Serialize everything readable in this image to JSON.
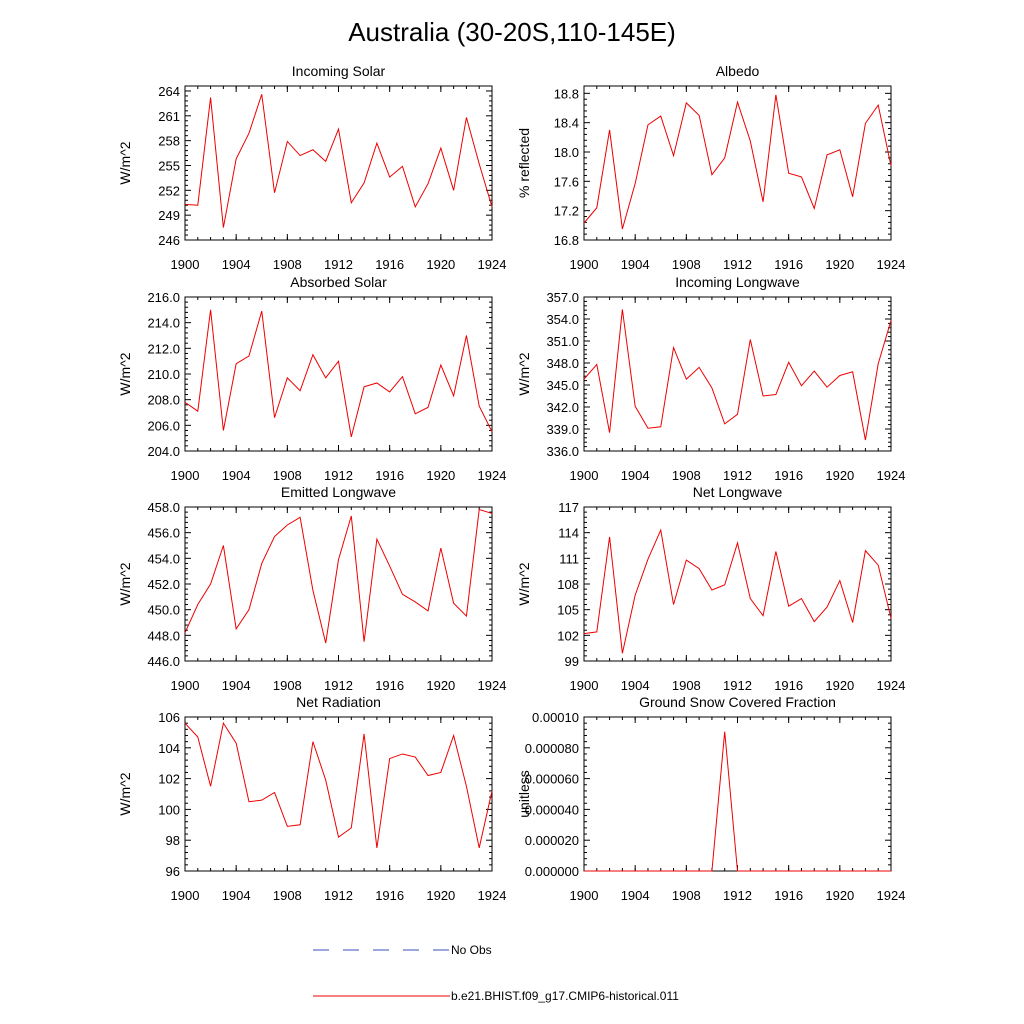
{
  "figure_title": "Australia (30-20S,110-145E)",
  "legend": [
    {
      "label": "No Obs",
      "color": "#3a4fb8",
      "dash": true
    },
    {
      "label": "b.e21.BHIST.f09_g17.CMIP6-historical.011",
      "color": "#ee0000",
      "dash": false
    }
  ],
  "chart_data": [
    {
      "type": "line",
      "title": "Incoming Solar",
      "ylabel": "W/m^2",
      "x": [
        1900,
        1901,
        1902,
        1903,
        1904,
        1905,
        1906,
        1907,
        1908,
        1909,
        1910,
        1911,
        1912,
        1913,
        1914,
        1915,
        1916,
        1917,
        1918,
        1919,
        1920,
        1921,
        1922,
        1923,
        1924
      ],
      "xlim": [
        1900,
        1924
      ],
      "xticks": [
        1900,
        1904,
        1908,
        1912,
        1916,
        1920,
        1924
      ],
      "xtick_labels": [
        "1900",
        "1904",
        "1908",
        "1912",
        "1916",
        "1920",
        "1924"
      ],
      "ylim": [
        246,
        264.6
      ],
      "yticks": [
        246,
        249,
        252,
        255,
        258,
        261,
        264
      ],
      "ytick_labels": [
        "246",
        "249",
        "252",
        "255",
        "258",
        "261",
        "264"
      ],
      "series": [
        {
          "values": [
            250.3,
            250.2,
            263.2,
            247.5,
            255.8,
            258.9,
            263.6,
            251.7,
            257.9,
            256.2,
            256.9,
            255.5,
            259.4,
            250.5,
            252.9,
            257.7,
            253.6,
            254.9,
            250.0,
            252.8,
            257.1,
            252.0,
            260.8,
            255.2,
            250.0
          ],
          "color": "#ee0000"
        }
      ]
    },
    {
      "type": "line",
      "title": "Albedo",
      "ylabel": "% reflected",
      "x": [
        1900,
        1901,
        1902,
        1903,
        1904,
        1905,
        1906,
        1907,
        1908,
        1909,
        1910,
        1911,
        1912,
        1913,
        1914,
        1915,
        1916,
        1917,
        1918,
        1919,
        1920,
        1921,
        1922,
        1923,
        1924
      ],
      "xlim": [
        1900,
        1924
      ],
      "xticks": [
        1900,
        1904,
        1908,
        1912,
        1916,
        1920,
        1924
      ],
      "xtick_labels": [
        "1900",
        "1904",
        "1908",
        "1912",
        "1916",
        "1920",
        "1924"
      ],
      "ylim": [
        16.8,
        18.9
      ],
      "yticks": [
        16.8,
        17.2,
        17.6,
        18.0,
        18.4,
        18.8
      ],
      "ytick_labels": [
        "16.8",
        "17.2",
        "17.6",
        "18.0",
        "18.4",
        "18.8"
      ],
      "series": [
        {
          "values": [
            17.03,
            17.24,
            18.3,
            16.95,
            17.57,
            18.37,
            18.49,
            17.95,
            18.67,
            18.5,
            17.69,
            17.92,
            18.68,
            18.15,
            17.32,
            18.78,
            17.71,
            17.66,
            17.23,
            17.96,
            18.03,
            17.39,
            18.39,
            18.64,
            17.81
          ],
          "color": "#ee0000"
        }
      ]
    },
    {
      "type": "line",
      "title": "Absorbed Solar",
      "ylabel": "W/m^2",
      "x": [
        1900,
        1901,
        1902,
        1903,
        1904,
        1905,
        1906,
        1907,
        1908,
        1909,
        1910,
        1911,
        1912,
        1913,
        1914,
        1915,
        1916,
        1917,
        1918,
        1919,
        1920,
        1921,
        1922,
        1923,
        1924
      ],
      "xlim": [
        1900,
        1924
      ],
      "xticks": [
        1900,
        1904,
        1908,
        1912,
        1916,
        1920,
        1924
      ],
      "xtick_labels": [
        "1900",
        "1904",
        "1908",
        "1912",
        "1916",
        "1920",
        "1924"
      ],
      "ylim": [
        204.0,
        216.0
      ],
      "yticks": [
        204,
        206,
        208,
        210,
        212,
        214,
        216
      ],
      "ytick_labels": [
        "204.0",
        "206.0",
        "208.0",
        "210.0",
        "212.0",
        "214.0",
        "216.0"
      ],
      "series": [
        {
          "values": [
            207.8,
            207.1,
            215.0,
            205.6,
            210.8,
            211.4,
            214.9,
            206.6,
            209.7,
            208.7,
            211.5,
            209.7,
            211.0,
            205.1,
            209.0,
            209.3,
            208.6,
            209.8,
            206.9,
            207.4,
            210.7,
            208.3,
            213.0,
            207.5,
            205.5
          ],
          "color": "#ee0000"
        }
      ]
    },
    {
      "type": "line",
      "title": "Incoming Longwave",
      "ylabel": "W/m^2",
      "x": [
        1900,
        1901,
        1902,
        1903,
        1904,
        1905,
        1906,
        1907,
        1908,
        1909,
        1910,
        1911,
        1912,
        1913,
        1914,
        1915,
        1916,
        1917,
        1918,
        1919,
        1920,
        1921,
        1922,
        1923,
        1924
      ],
      "xlim": [
        1900,
        1924
      ],
      "xticks": [
        1900,
        1904,
        1908,
        1912,
        1916,
        1920,
        1924
      ],
      "xtick_labels": [
        "1900",
        "1904",
        "1908",
        "1912",
        "1916",
        "1920",
        "1924"
      ],
      "ylim": [
        336.0,
        357.0
      ],
      "yticks": [
        336,
        339,
        342,
        345,
        348,
        351,
        354,
        357
      ],
      "ytick_labels": [
        "336.0",
        "339.0",
        "342.0",
        "345.0",
        "348.0",
        "351.0",
        "354.0",
        "357.0"
      ],
      "series": [
        {
          "values": [
            345.8,
            347.8,
            338.5,
            355.3,
            342.1,
            339.1,
            339.3,
            350.1,
            345.8,
            347.4,
            344.6,
            339.7,
            341.0,
            351.2,
            343.5,
            343.7,
            348.1,
            344.9,
            346.9,
            344.7,
            346.3,
            346.8,
            337.5,
            347.9,
            353.8
          ],
          "color": "#ee0000"
        }
      ]
    },
    {
      "type": "line",
      "title": "Emitted Longwave",
      "ylabel": "W/m^2",
      "x": [
        1900,
        1901,
        1902,
        1903,
        1904,
        1905,
        1906,
        1907,
        1908,
        1909,
        1910,
        1911,
        1912,
        1913,
        1914,
        1915,
        1916,
        1917,
        1918,
        1919,
        1920,
        1921,
        1922,
        1923,
        1924
      ],
      "xlim": [
        1900,
        1924
      ],
      "xticks": [
        1900,
        1904,
        1908,
        1912,
        1916,
        1920,
        1924
      ],
      "xtick_labels": [
        "1900",
        "1904",
        "1908",
        "1912",
        "1916",
        "1920",
        "1924"
      ],
      "ylim": [
        446.0,
        458.0
      ],
      "yticks": [
        446,
        448,
        450,
        452,
        454,
        456,
        458
      ],
      "ytick_labels": [
        "446.0",
        "448.0",
        "450.0",
        "452.0",
        "454.0",
        "456.0",
        "458.0"
      ],
      "series": [
        {
          "values": [
            448.2,
            450.4,
            452.0,
            455.0,
            448.5,
            450.0,
            453.6,
            455.7,
            456.6,
            457.2,
            451.5,
            447.4,
            453.9,
            457.3,
            447.5,
            455.5,
            453.4,
            451.2,
            450.6,
            449.9,
            454.8,
            450.5,
            449.5,
            457.8,
            457.5
          ],
          "color": "#ee0000"
        }
      ]
    },
    {
      "type": "line",
      "title": "Net Longwave",
      "ylabel": "W/m^2",
      "x": [
        1900,
        1901,
        1902,
        1903,
        1904,
        1905,
        1906,
        1907,
        1908,
        1909,
        1910,
        1911,
        1912,
        1913,
        1914,
        1915,
        1916,
        1917,
        1918,
        1919,
        1920,
        1921,
        1922,
        1923,
        1924
      ],
      "xlim": [
        1900,
        1924
      ],
      "xticks": [
        1900,
        1904,
        1908,
        1912,
        1916,
        1920,
        1924
      ],
      "xtick_labels": [
        "1900",
        "1904",
        "1908",
        "1912",
        "1916",
        "1920",
        "1924"
      ],
      "ylim": [
        99,
        117
      ],
      "yticks": [
        99,
        102,
        105,
        108,
        111,
        114,
        117
      ],
      "ytick_labels": [
        "99",
        "102",
        "105",
        "108",
        "111",
        "114",
        "117"
      ],
      "series": [
        {
          "values": [
            102.2,
            102.4,
            113.5,
            99.9,
            106.7,
            110.9,
            114.3,
            105.6,
            110.8,
            109.8,
            107.3,
            107.9,
            112.8,
            106.3,
            104.3,
            111.8,
            105.4,
            106.3,
            103.6,
            105.3,
            108.4,
            103.5,
            111.9,
            110.2,
            104.0
          ],
          "color": "#ee0000"
        }
      ]
    },
    {
      "type": "line",
      "title": "Net Radiation",
      "ylabel": "W/m^2",
      "x": [
        1900,
        1901,
        1902,
        1903,
        1904,
        1905,
        1906,
        1907,
        1908,
        1909,
        1910,
        1911,
        1912,
        1913,
        1914,
        1915,
        1916,
        1917,
        1918,
        1919,
        1920,
        1921,
        1922,
        1923,
        1924
      ],
      "xlim": [
        1900,
        1924
      ],
      "xticks": [
        1900,
        1904,
        1908,
        1912,
        1916,
        1920,
        1924
      ],
      "xtick_labels": [
        "1900",
        "1904",
        "1908",
        "1912",
        "1916",
        "1920",
        "1924"
      ],
      "ylim": [
        96,
        106
      ],
      "yticks": [
        96,
        98,
        100,
        102,
        104,
        106
      ],
      "ytick_labels": [
        "96",
        "98",
        "100",
        "102",
        "104",
        "106"
      ],
      "series": [
        {
          "values": [
            105.6,
            104.7,
            101.5,
            105.6,
            104.3,
            100.5,
            100.6,
            101.1,
            98.9,
            99.0,
            104.4,
            101.9,
            98.2,
            98.8,
            104.9,
            97.5,
            103.3,
            103.6,
            103.4,
            102.2,
            102.4,
            104.8,
            101.5,
            97.5,
            101.2
          ],
          "color": "#ee0000"
        }
      ]
    },
    {
      "type": "line",
      "title": "Ground Snow Covered Fraction",
      "ylabel": "unitless",
      "x": [
        1900,
        1901,
        1902,
        1903,
        1904,
        1905,
        1906,
        1907,
        1908,
        1909,
        1910,
        1911,
        1912,
        1913,
        1914,
        1915,
        1916,
        1917,
        1918,
        1919,
        1920,
        1921,
        1922,
        1923,
        1924
      ],
      "xlim": [
        1900,
        1924
      ],
      "xticks": [
        1900,
        1904,
        1908,
        1912,
        1916,
        1920,
        1924
      ],
      "xtick_labels": [
        "1900",
        "1904",
        "1908",
        "1912",
        "1916",
        "1920",
        "1924"
      ],
      "ylim": [
        0,
        0.0001
      ],
      "yticks": [
        0,
        2e-05,
        4e-05,
        6e-05,
        8e-05,
        0.0001
      ],
      "ytick_labels": [
        "0.000000",
        "0.000020",
        "0.000040",
        "0.000060",
        "0.000080",
        "0.00010"
      ],
      "series": [
        {
          "values": [
            0,
            0,
            0,
            0,
            0,
            0,
            0,
            0,
            0,
            0,
            0,
            9.05e-05,
            0,
            0,
            0,
            0,
            0,
            0,
            0,
            0,
            0,
            0,
            0,
            0,
            0
          ],
          "color": "#ee0000"
        }
      ]
    }
  ]
}
